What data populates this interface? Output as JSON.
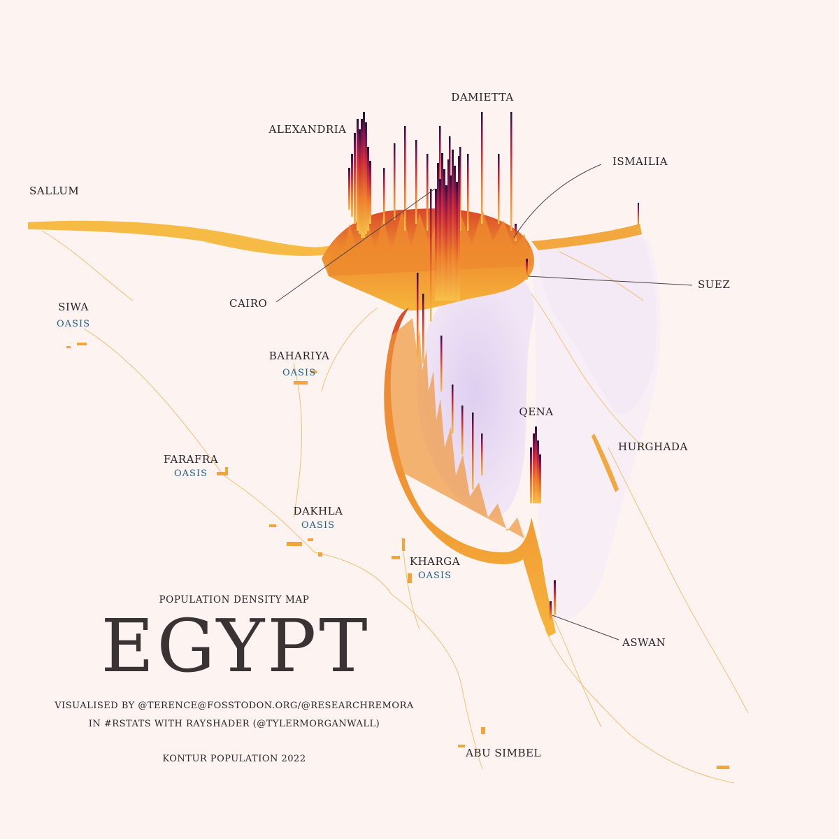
{
  "title": {
    "subtitle": "POPULATION DENSITY MAP",
    "main": "EGYPT",
    "credit_line1": "VISUALISED BY @TERENCE@FOSSTODON.ORG/@RESEARCHREMORA",
    "credit_line2": "IN #RSTATS WITH RAYSHADER (@TYLERMORGANWALL)",
    "source": "KONTUR POPULATION 2022"
  },
  "places": {
    "alexandria": "ALEXANDRIA",
    "damietta": "DAMIETTA",
    "ismailia": "ISMAILIA",
    "sallum": "SALLUM",
    "cairo": "CAIRO",
    "suez": "SUEZ",
    "siwa": "SIWA",
    "bahariya": "BAHARIYA",
    "farafra": "FARAFRA",
    "dakhla": "DAKHLA",
    "kharga": "KHARGA",
    "qena": "QENA",
    "hurghada": "HURGHADA",
    "aswan": "ASWAN",
    "abu_simbel": "ABU SIMBEL",
    "oasis": "OASIS"
  },
  "colors": {
    "background": "#fdf3f1",
    "low_density": "#f5b53a",
    "mid_density": "#e0522a",
    "high_density": "#a8174a",
    "peak_density": "#2a1238",
    "shadow": "#e4d6f3",
    "oasis_label": "#1f5f86"
  }
}
